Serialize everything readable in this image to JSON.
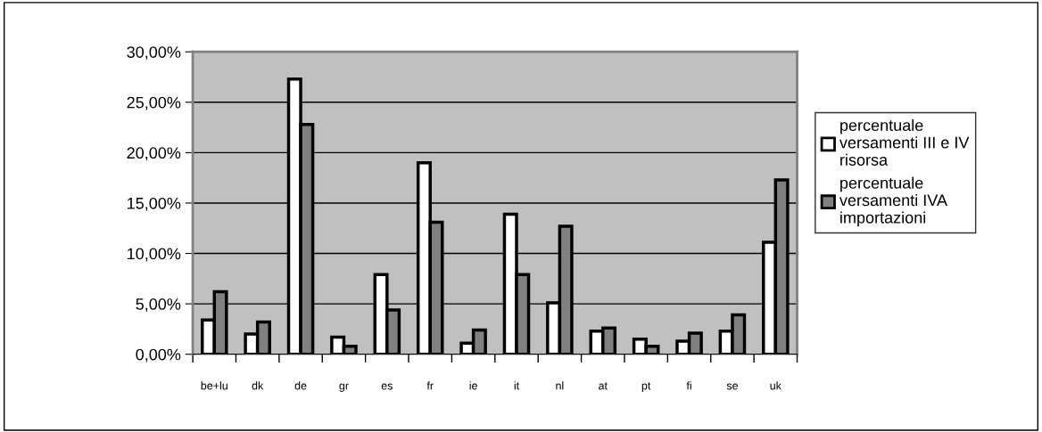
{
  "chart_data": {
    "type": "bar",
    "categories": [
      "be+lu",
      "dk",
      "de",
      "gr",
      "es",
      "fr",
      "ie",
      "it",
      "nl",
      "at",
      "pt",
      "fi",
      "se",
      "uk"
    ],
    "series": [
      {
        "name": "percentuale\nversamenti III e IV\nrisorsa",
        "color": "#ffffff",
        "values": [
          3.4,
          2.0,
          27.3,
          1.7,
          7.9,
          19.0,
          1.1,
          13.9,
          5.1,
          2.3,
          1.5,
          1.3,
          2.3,
          11.1
        ]
      },
      {
        "name": "percentuale\nversamenti IVA\nimportazioni",
        "color": "#808080",
        "values": [
          6.2,
          3.2,
          22.8,
          0.8,
          4.4,
          13.1,
          2.4,
          7.9,
          12.7,
          2.6,
          0.8,
          2.1,
          3.9,
          17.3
        ]
      }
    ],
    "ylim": [
      0,
      30
    ],
    "yticks": [
      {
        "value": 0,
        "label": "0,00%"
      },
      {
        "value": 5,
        "label": "5,00%"
      },
      {
        "value": 10,
        "label": "10,00%"
      },
      {
        "value": 15,
        "label": "15,00%"
      },
      {
        "value": 20,
        "label": "20,00%"
      },
      {
        "value": 25,
        "label": "25,00%"
      },
      {
        "value": 30,
        "label": "30,00%"
      }
    ],
    "grid": "y",
    "legend": "right"
  }
}
